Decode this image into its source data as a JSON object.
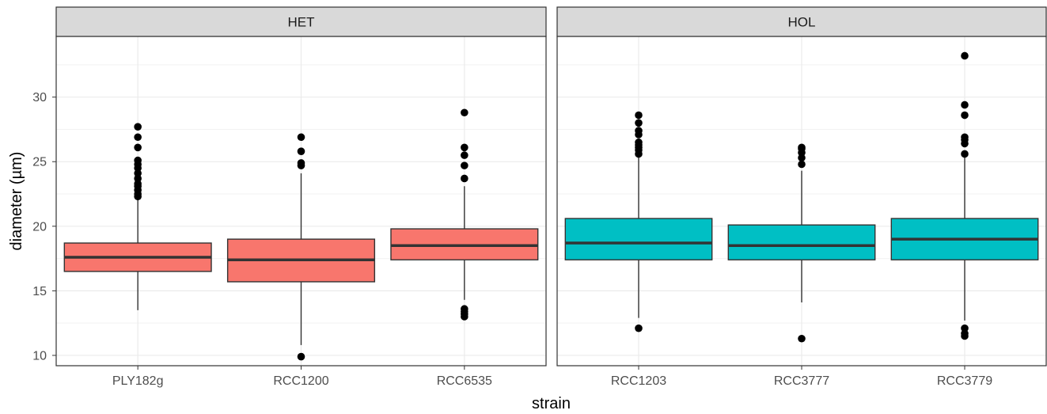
{
  "chart_data": {
    "type": "boxplot",
    "xlabel": "strain",
    "ylabel": "diameter (µm)",
    "y_ticks": [
      10,
      15,
      20,
      25,
      30
    ],
    "ylim": [
      9.2,
      34.7
    ],
    "grid": true,
    "panels": [
      {
        "label": "HET",
        "fill": "#F8766D",
        "boxes": [
          {
            "name": "PLY182g",
            "whisker_low": 13.5,
            "q1": 16.5,
            "median": 17.6,
            "q3": 18.7,
            "whisker_high": 22.2,
            "outliers": [
              22.3,
              22.5,
              22.8,
              23.1,
              23.3,
              23.7,
              24.1,
              24.5,
              24.8,
              25.1,
              26.1,
              26.9,
              27.7
            ]
          },
          {
            "name": "RCC1200",
            "whisker_low": 10.8,
            "q1": 15.7,
            "median": 17.4,
            "q3": 19.0,
            "whisker_high": 24.1,
            "outliers": [
              9.9,
              24.7,
              24.9,
              25.8,
              26.9
            ]
          },
          {
            "name": "RCC6535",
            "whisker_low": 14.3,
            "q1": 17.4,
            "median": 18.5,
            "q3": 19.8,
            "whisker_high": 23.1,
            "outliers": [
              13.0,
              13.2,
              13.4,
              13.6,
              23.7,
              24.7,
              25.5,
              26.1,
              28.8
            ]
          }
        ]
      },
      {
        "label": "HOL",
        "fill": "#00BFC4",
        "boxes": [
          {
            "name": "RCC1203",
            "whisker_low": 12.9,
            "q1": 17.4,
            "median": 18.7,
            "q3": 20.6,
            "whisker_high": 25.5,
            "outliers": [
              12.1,
              25.6,
              25.9,
              26.1,
              26.3,
              26.5,
              27.1,
              27.4,
              28.0,
              28.6
            ]
          },
          {
            "name": "RCC3777",
            "whisker_low": 14.1,
            "q1": 17.4,
            "median": 18.5,
            "q3": 20.1,
            "whisker_high": 24.3,
            "outliers": [
              11.3,
              24.8,
              25.3,
              25.7,
              26.0,
              26.1
            ]
          },
          {
            "name": "RCC3779",
            "whisker_low": 12.7,
            "q1": 17.4,
            "median": 19.0,
            "q3": 20.6,
            "whisker_high": 25.6,
            "outliers": [
              11.5,
              11.7,
              12.1,
              25.6,
              26.4,
              26.7,
              26.9,
              28.6,
              29.4,
              33.2
            ]
          }
        ]
      }
    ]
  },
  "colors": {
    "strip_bg": "#D9D9D9",
    "panel_border": "#333333",
    "grid_major": "#EBEBEB",
    "grid_minor": "#F2F2F2",
    "box_stroke": "#333333",
    "outlier": "#000000"
  }
}
